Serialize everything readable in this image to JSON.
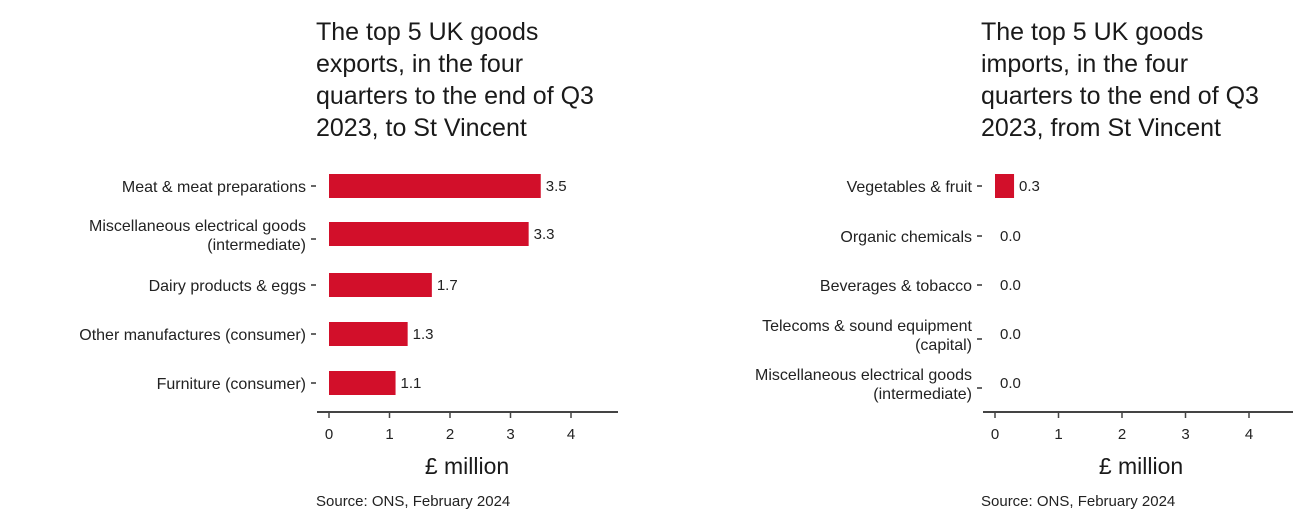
{
  "colors": {
    "bar": "#d20f2a",
    "axis": "#444444"
  },
  "source": "Source: ONS, February 2024",
  "chart_data": [
    {
      "type": "bar",
      "orientation": "horizontal",
      "title_lines": [
        "The top 5 UK goods",
        "exports, in the four",
        "quarters to the end of Q3",
        "2023, to St Vincent"
      ],
      "categories": [
        [
          "Meat & meat preparations"
        ],
        [
          "Miscellaneous electrical goods",
          "(intermediate)"
        ],
        [
          "Dairy products & eggs"
        ],
        [
          "Other manufactures (consumer)"
        ],
        [
          "Furniture (consumer)"
        ]
      ],
      "values": [
        3.5,
        3.3,
        1.7,
        1.3,
        1.1
      ],
      "value_labels": [
        "3.5",
        "3.3",
        "1.7",
        "1.3",
        "1.1"
      ],
      "xlabel": "£ million",
      "xlim": [
        0,
        4.7
      ],
      "xticks": [
        0,
        1,
        2,
        3,
        4
      ],
      "source": "Source: ONS, February 2024"
    },
    {
      "type": "bar",
      "orientation": "horizontal",
      "title_lines": [
        "The top 5 UK goods",
        "imports, in the four",
        "quarters to the end of Q3",
        "2023, from St Vincent"
      ],
      "categories": [
        [
          "Vegetables & fruit"
        ],
        [
          "Organic chemicals"
        ],
        [
          "Beverages & tobacco"
        ],
        [
          "Telecoms & sound equipment",
          "(capital)"
        ],
        [
          "Miscellaneous electrical goods",
          "(intermediate)"
        ]
      ],
      "values": [
        0.3,
        0.0,
        0.0,
        0.0,
        0.0
      ],
      "value_labels": [
        "0.3",
        "0.0",
        "0.0",
        "0.0",
        "0.0"
      ],
      "xlabel": "£ million",
      "xlim": [
        0,
        4.7
      ],
      "xticks": [
        0,
        1,
        2,
        3,
        4
      ],
      "source": "Source: ONS, February 2024"
    }
  ]
}
